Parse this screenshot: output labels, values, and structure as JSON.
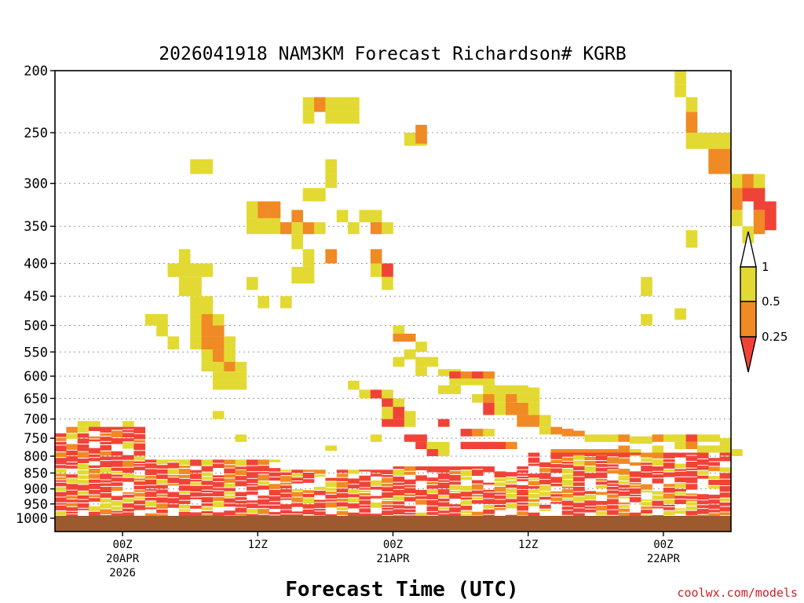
{
  "chart_data": {
    "type": "heatmap",
    "title": "2026041918 NAM3KM Forecast Richardson# KGRB",
    "xlabel": "Forecast Time (UTC)",
    "ylabel": "",
    "credit": "coolwx.com/models",
    "y_axis": {
      "scale": "log-pressure",
      "range": [
        1000,
        200
      ],
      "ticks": [
        200,
        250,
        300,
        350,
        400,
        450,
        500,
        550,
        600,
        650,
        700,
        750,
        800,
        850,
        900,
        950,
        1000
      ]
    },
    "x_axis": {
      "range_hours": [
        0,
        60
      ],
      "ticks": [
        {
          "hour": 6,
          "lines": [
            "00Z",
            "20APR",
            "2026"
          ]
        },
        {
          "hour": 18,
          "lines": [
            "12Z"
          ]
        },
        {
          "hour": 30,
          "lines": [
            "00Z",
            "21APR"
          ]
        },
        {
          "hour": 42,
          "lines": [
            "12Z"
          ]
        },
        {
          "hour": 54,
          "lines": [
            "00Z",
            "22APR"
          ]
        }
      ]
    },
    "grid": true,
    "colorbar": {
      "levels": [
        {
          "label": "1",
          "color": "#ffffff"
        },
        {
          "label": "0.5",
          "color": "#e3d933"
        },
        {
          "label": "0.25",
          "color": "#f08a24"
        },
        {
          "label": "",
          "color": "#f04337"
        }
      ],
      "placement": "right"
    },
    "classes": {
      "y": "#e3d933",
      "o": "#f08a24",
      "r": "#f04337"
    },
    "surface_color": "#9c5a2e",
    "cells": [
      [
        55,
        200,
        210,
        "y"
      ],
      [
        55,
        210,
        220,
        "y"
      ],
      [
        56,
        220,
        232,
        "y"
      ],
      [
        56,
        232,
        250,
        "o"
      ],
      [
        56,
        250,
        265,
        "y"
      ],
      [
        57,
        250,
        265,
        "y"
      ],
      [
        58,
        250,
        265,
        "y"
      ],
      [
        59,
        250,
        265,
        "y"
      ],
      [
        58,
        265,
        290,
        "o"
      ],
      [
        59,
        265,
        290,
        "o"
      ],
      [
        60,
        290,
        305,
        "y"
      ],
      [
        61,
        290,
        305,
        "o"
      ],
      [
        61,
        305,
        320,
        "r"
      ],
      [
        62,
        290,
        305,
        "y"
      ],
      [
        60,
        305,
        330,
        "o"
      ],
      [
        62,
        305,
        330,
        "r"
      ],
      [
        60,
        330,
        350,
        "y"
      ],
      [
        62,
        330,
        360,
        "o"
      ],
      [
        63,
        320,
        355,
        "r"
      ],
      [
        61,
        350,
        372,
        "y"
      ],
      [
        56,
        355,
        378,
        "y"
      ],
      [
        22,
        220,
        232,
        "y"
      ],
      [
        23,
        220,
        232,
        "o"
      ],
      [
        24,
        220,
        232,
        "y"
      ],
      [
        25,
        220,
        232,
        "y"
      ],
      [
        26,
        220,
        232,
        "y"
      ],
      [
        22,
        232,
        242,
        "y"
      ],
      [
        24,
        232,
        242,
        "y"
      ],
      [
        25,
        232,
        242,
        "y"
      ],
      [
        26,
        232,
        242,
        "y"
      ],
      [
        31,
        250,
        262,
        "y"
      ],
      [
        32,
        250,
        262,
        "y"
      ],
      [
        32,
        243,
        260,
        "o"
      ],
      [
        12,
        275,
        290,
        "y"
      ],
      [
        13,
        275,
        290,
        "y"
      ],
      [
        24,
        275,
        290,
        "y"
      ],
      [
        24,
        290,
        305,
        "y"
      ],
      [
        23,
        305,
        320,
        "y"
      ],
      [
        22,
        305,
        320,
        "y"
      ],
      [
        17,
        320,
        340,
        "y"
      ],
      [
        18,
        320,
        340,
        "o"
      ],
      [
        19,
        320,
        340,
        "o"
      ],
      [
        17,
        340,
        360,
        "y"
      ],
      [
        18,
        340,
        360,
        "y"
      ],
      [
        19,
        340,
        360,
        "y"
      ],
      [
        21,
        330,
        345,
        "o"
      ],
      [
        20,
        345,
        360,
        "o"
      ],
      [
        21,
        345,
        360,
        "y"
      ],
      [
        22,
        345,
        360,
        "o"
      ],
      [
        23,
        345,
        360,
        "y"
      ],
      [
        25,
        330,
        345,
        "y"
      ],
      [
        26,
        345,
        360,
        "y"
      ],
      [
        27,
        330,
        345,
        "y"
      ],
      [
        28,
        330,
        345,
        "y"
      ],
      [
        28,
        345,
        360,
        "o"
      ],
      [
        29,
        345,
        360,
        "y"
      ],
      [
        21,
        360,
        380,
        "y"
      ],
      [
        22,
        380,
        405,
        "y"
      ],
      [
        21,
        405,
        430,
        "y"
      ],
      [
        22,
        405,
        430,
        "y"
      ],
      [
        24,
        380,
        400,
        "o"
      ],
      [
        28,
        380,
        400,
        "o"
      ],
      [
        28,
        400,
        420,
        "y"
      ],
      [
        29,
        400,
        420,
        "r"
      ],
      [
        29,
        420,
        440,
        "y"
      ],
      [
        13,
        400,
        420,
        "y"
      ],
      [
        17,
        420,
        440,
        "y"
      ],
      [
        18,
        450,
        470,
        "y"
      ],
      [
        20,
        450,
        470,
        "y"
      ],
      [
        11,
        380,
        400,
        "y"
      ],
      [
        11,
        400,
        420,
        "y"
      ],
      [
        10,
        400,
        420,
        "y"
      ],
      [
        12,
        400,
        420,
        "y"
      ],
      [
        11,
        420,
        450,
        "y"
      ],
      [
        12,
        420,
        450,
        "y"
      ],
      [
        12,
        450,
        480,
        "y"
      ],
      [
        13,
        450,
        480,
        "y"
      ],
      [
        12,
        480,
        500,
        "y"
      ],
      [
        13,
        480,
        500,
        "o"
      ],
      [
        14,
        480,
        500,
        "y"
      ],
      [
        8,
        480,
        500,
        "y"
      ],
      [
        9,
        480,
        500,
        "y"
      ],
      [
        9,
        500,
        520,
        "y"
      ],
      [
        12,
        500,
        520,
        "y"
      ],
      [
        13,
        500,
        520,
        "o"
      ],
      [
        14,
        500,
        520,
        "o"
      ],
      [
        12,
        520,
        545,
        "y"
      ],
      [
        13,
        520,
        545,
        "o"
      ],
      [
        14,
        520,
        545,
        "o"
      ],
      [
        15,
        520,
        545,
        "y"
      ],
      [
        10,
        520,
        545,
        "y"
      ],
      [
        13,
        545,
        570,
        "y"
      ],
      [
        14,
        545,
        570,
        "o"
      ],
      [
        15,
        545,
        570,
        "y"
      ],
      [
        13,
        570,
        590,
        "y"
      ],
      [
        14,
        570,
        590,
        "y"
      ],
      [
        15,
        570,
        590,
        "o"
      ],
      [
        16,
        570,
        590,
        "y"
      ],
      [
        14,
        590,
        610,
        "y"
      ],
      [
        15,
        590,
        610,
        "y"
      ],
      [
        16,
        590,
        610,
        "y"
      ],
      [
        14,
        610,
        630,
        "y"
      ],
      [
        15,
        610,
        630,
        "y"
      ],
      [
        16,
        610,
        630,
        "y"
      ],
      [
        30,
        500,
        515,
        "y"
      ],
      [
        30,
        515,
        530,
        "o"
      ],
      [
        31,
        515,
        530,
        "o"
      ],
      [
        32,
        530,
        550,
        "y"
      ],
      [
        31,
        545,
        565,
        "y"
      ],
      [
        30,
        560,
        580,
        "y"
      ],
      [
        32,
        560,
        580,
        "y"
      ],
      [
        33,
        560,
        580,
        "y"
      ],
      [
        32,
        580,
        600,
        "y"
      ],
      [
        34,
        585,
        600,
        "y"
      ],
      [
        35,
        585,
        600,
        "y"
      ],
      [
        35,
        600,
        620,
        "y"
      ],
      [
        36,
        600,
        620,
        "y"
      ],
      [
        37,
        600,
        620,
        "y"
      ],
      [
        38,
        600,
        620,
        "y"
      ],
      [
        34,
        620,
        640,
        "y"
      ],
      [
        35,
        620,
        640,
        "y"
      ],
      [
        38,
        620,
        640,
        "y"
      ],
      [
        39,
        620,
        640,
        "y"
      ],
      [
        35,
        590,
        605,
        "r"
      ],
      [
        36,
        590,
        605,
        "o"
      ],
      [
        37,
        590,
        605,
        "r"
      ],
      [
        38,
        590,
        605,
        "o"
      ],
      [
        37,
        640,
        660,
        "y"
      ],
      [
        38,
        640,
        660,
        "o"
      ],
      [
        39,
        640,
        660,
        "y"
      ],
      [
        40,
        640,
        660,
        "o"
      ],
      [
        38,
        660,
        690,
        "r"
      ],
      [
        39,
        660,
        690,
        "y"
      ],
      [
        40,
        660,
        690,
        "o"
      ],
      [
        41,
        660,
        690,
        "o"
      ],
      [
        42,
        660,
        690,
        "y"
      ],
      [
        41,
        640,
        660,
        "y"
      ],
      [
        42,
        640,
        660,
        "y"
      ],
      [
        40,
        620,
        640,
        "y"
      ],
      [
        41,
        620,
        640,
        "y"
      ],
      [
        42,
        625,
        640,
        "y"
      ],
      [
        41,
        690,
        720,
        "o"
      ],
      [
        42,
        690,
        720,
        "o"
      ],
      [
        43,
        690,
        720,
        "y"
      ],
      [
        26,
        610,
        630,
        "y"
      ],
      [
        27,
        630,
        650,
        "y"
      ],
      [
        28,
        630,
        650,
        "r"
      ],
      [
        29,
        630,
        650,
        "y"
      ],
      [
        29,
        650,
        670,
        "r"
      ],
      [
        30,
        650,
        670,
        "y"
      ],
      [
        29,
        670,
        700,
        "y"
      ],
      [
        30,
        670,
        700,
        "r"
      ],
      [
        31,
        680,
        700,
        "y"
      ],
      [
        29,
        700,
        720,
        "r"
      ],
      [
        30,
        700,
        720,
        "r"
      ],
      [
        31,
        700,
        720,
        "y"
      ],
      [
        34,
        700,
        720,
        "r"
      ],
      [
        36,
        725,
        745,
        "r"
      ],
      [
        37,
        725,
        745,
        "o"
      ],
      [
        38,
        725,
        745,
        "y"
      ],
      [
        28,
        740,
        760,
        "y"
      ],
      [
        31,
        740,
        760,
        "r"
      ],
      [
        32,
        740,
        760,
        "r"
      ],
      [
        32,
        760,
        780,
        "r"
      ],
      [
        33,
        760,
        780,
        "y"
      ],
      [
        33,
        780,
        800,
        "r"
      ],
      [
        34,
        760,
        780,
        "y"
      ],
      [
        34,
        780,
        800,
        "y"
      ],
      [
        14,
        680,
        700,
        "y"
      ],
      [
        16,
        740,
        760,
        "y"
      ],
      [
        24,
        770,
        785,
        "y"
      ],
      [
        2,
        705,
        720,
        "y"
      ],
      [
        3,
        705,
        720,
        "y"
      ],
      [
        6,
        705,
        720,
        "y"
      ],
      [
        55,
        470,
        490,
        "y"
      ],
      [
        52,
        420,
        450,
        "y"
      ],
      [
        52,
        480,
        500,
        "y"
      ],
      [
        43,
        720,
        740,
        "y"
      ],
      [
        44,
        720,
        740,
        "o"
      ],
      [
        45,
        725,
        745,
        "o"
      ],
      [
        46,
        730,
        745,
        "o"
      ],
      [
        47,
        740,
        760,
        "y"
      ],
      [
        48,
        740,
        760,
        "y"
      ],
      [
        49,
        740,
        760,
        "y"
      ],
      [
        50,
        740,
        760,
        "o"
      ],
      [
        51,
        745,
        765,
        "y"
      ],
      [
        52,
        745,
        765,
        "y"
      ],
      [
        53,
        740,
        760,
        "o"
      ],
      [
        54,
        740,
        760,
        "y"
      ],
      [
        55,
        740,
        760,
        "y"
      ],
      [
        56,
        740,
        760,
        "r"
      ],
      [
        57,
        740,
        760,
        "y"
      ],
      [
        58,
        740,
        760,
        "y"
      ],
      [
        59,
        750,
        770,
        "y"
      ],
      [
        44,
        780,
        800,
        "o"
      ],
      [
        45,
        780,
        800,
        "o"
      ],
      [
        46,
        780,
        800,
        "o"
      ],
      [
        47,
        780,
        800,
        "o"
      ],
      [
        48,
        780,
        800,
        "o"
      ],
      [
        49,
        780,
        800,
        "o"
      ],
      [
        50,
        770,
        800,
        "o"
      ],
      [
        51,
        780,
        800,
        "y"
      ],
      [
        53,
        770,
        795,
        "y"
      ],
      [
        55,
        760,
        780,
        "y"
      ],
      [
        56,
        760,
        780,
        "o"
      ],
      [
        57,
        770,
        790,
        "y"
      ],
      [
        58,
        770,
        790,
        "y"
      ],
      [
        59,
        770,
        790,
        "y"
      ],
      [
        60,
        780,
        800,
        "y"
      ],
      [
        36,
        760,
        780,
        "r"
      ],
      [
        37,
        760,
        780,
        "r"
      ],
      [
        38,
        760,
        780,
        "r"
      ],
      [
        39,
        760,
        780,
        "r"
      ],
      [
        40,
        760,
        780,
        "o"
      ]
    ]
  }
}
